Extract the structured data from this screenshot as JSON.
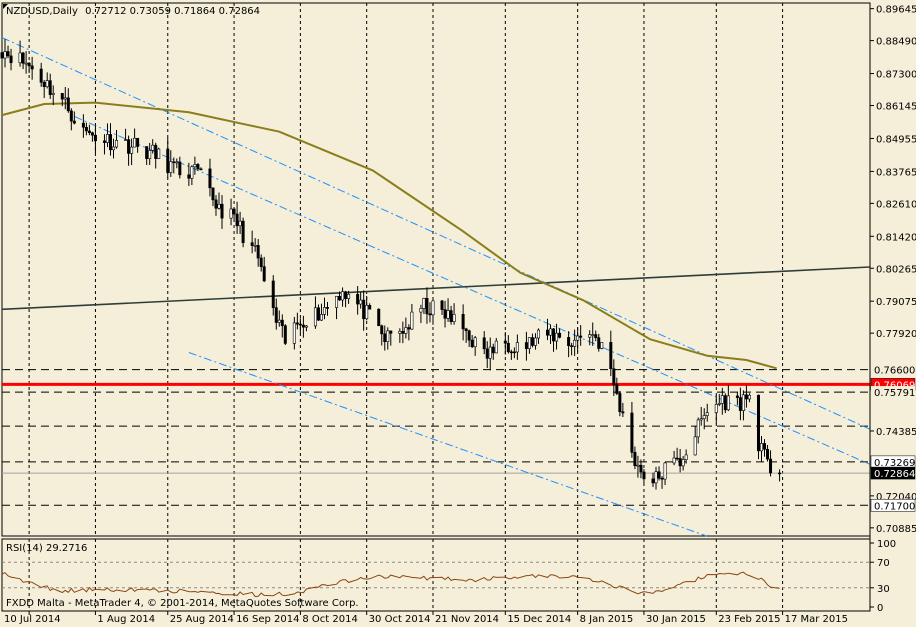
{
  "chart_data": {
    "type": "candlestick",
    "title": "NZDUSD,Daily",
    "ohlc_readout": "0.72712 0.73059 0.71864 0.72864",
    "symbol": "NZDUSD",
    "timeframe": "Daily",
    "price_axis_ticks": [
      "0.89645",
      "0.88490",
      "0.87300",
      "0.86145",
      "0.84955",
      "0.83765",
      "0.82610",
      "0.81420",
      "0.80265",
      "0.79075",
      "0.77920",
      "0.74385",
      "0.72040",
      "0.70885"
    ],
    "price_range": [
      0.7059,
      0.8985
    ],
    "price_labels": [
      {
        "text": "0.76600",
        "value": 0.766,
        "bg": "#F5EFD9",
        "fg": "#000000"
      },
      {
        "text": "0.76069",
        "value": 0.76069,
        "bg": "#FF0000",
        "fg": "#FFFFFF"
      },
      {
        "text": "0.75791",
        "value": 0.75791,
        "bg": "#F5EFD9",
        "fg": "#000000"
      },
      {
        "text": "0.73269",
        "value": 0.73269,
        "bg": "#FFFFFF",
        "fg": "#000000"
      },
      {
        "text": "0.72864",
        "value": 0.72864,
        "bg": "#000000",
        "fg": "#FFFFFF"
      },
      {
        "text": "0.71700",
        "value": 0.717,
        "bg": "#FFFFFF",
        "fg": "#000000"
      }
    ],
    "date_axis_ticks": [
      "10 Jul 2014",
      "1 Aug 2014",
      "25 Aug 2014",
      "16 Sep 2014",
      "8 Oct 2014",
      "30 Oct 2014",
      "21 Nov 2014",
      "15 Dec 2014",
      "8 Jan 2015",
      "30 Jan 2015",
      "23 Feb 2015",
      "17 Mar 2015"
    ],
    "date_range": [
      "2014-07-01",
      "2015-04-15"
    ],
    "bars_anchor": [
      [
        "2014-07-01",
        0.882
      ],
      [
        "2014-07-10",
        0.876
      ],
      [
        "2014-07-16",
        0.869
      ],
      [
        "2014-07-22",
        0.862
      ],
      [
        "2014-07-28",
        0.852
      ],
      [
        "2014-08-05",
        0.849
      ],
      [
        "2014-08-14",
        0.847
      ],
      [
        "2014-08-22",
        0.843
      ],
      [
        "2014-08-28",
        0.838
      ],
      [
        "2014-09-04",
        0.837
      ],
      [
        "2014-09-10",
        0.826
      ],
      [
        "2014-09-17",
        0.819
      ],
      [
        "2014-09-24",
        0.806
      ],
      [
        "2014-09-29",
        0.786
      ],
      [
        "2014-10-03",
        0.776
      ],
      [
        "2014-10-08",
        0.784
      ],
      [
        "2014-10-15",
        0.787
      ],
      [
        "2014-10-22",
        0.795
      ],
      [
        "2014-10-30",
        0.786
      ],
      [
        "2014-11-05",
        0.777
      ],
      [
        "2014-11-12",
        0.781
      ],
      [
        "2014-11-18",
        0.789
      ],
      [
        "2014-11-25",
        0.786
      ],
      [
        "2014-12-02",
        0.78
      ],
      [
        "2014-12-08",
        0.771
      ],
      [
        "2014-12-15",
        0.776
      ],
      [
        "2014-12-22",
        0.775
      ],
      [
        "2014-12-30",
        0.779
      ],
      [
        "2015-01-06",
        0.776
      ],
      [
        "2015-01-12",
        0.78
      ],
      [
        "2015-01-16",
        0.775
      ],
      [
        "2015-01-21",
        0.757
      ],
      [
        "2015-01-25",
        0.74
      ],
      [
        "2015-01-28",
        0.731
      ],
      [
        "2015-02-02",
        0.725
      ],
      [
        "2015-02-06",
        0.73
      ],
      [
        "2015-02-11",
        0.733
      ],
      [
        "2015-02-16",
        0.743
      ],
      [
        "2015-02-20",
        0.751
      ],
      [
        "2015-02-25",
        0.755
      ],
      [
        "2015-03-02",
        0.754
      ],
      [
        "2015-03-06",
        0.756
      ],
      [
        "2015-03-09",
        0.74
      ],
      [
        "2015-03-12",
        0.731
      ],
      [
        "2015-03-16",
        0.7286
      ]
    ],
    "moving_average": [
      [
        "2014-07-01",
        0.858
      ],
      [
        "2014-07-15",
        0.862
      ],
      [
        "2014-08-01",
        0.8625
      ],
      [
        "2014-09-01",
        0.859
      ],
      [
        "2014-10-01",
        0.852
      ],
      [
        "2014-11-01",
        0.838
      ],
      [
        "2014-12-01",
        0.816
      ],
      [
        "2014-12-20",
        0.801
      ],
      [
        "2015-01-10",
        0.791
      ],
      [
        "2015-02-01",
        0.777
      ],
      [
        "2015-02-20",
        0.771
      ],
      [
        "2015-03-05",
        0.7695
      ],
      [
        "2015-03-15",
        0.7665
      ]
    ],
    "horizontal_levels": [
      {
        "value": 0.76069,
        "style": "solid",
        "color": "#FF0000"
      },
      {
        "value": 0.766,
        "style": "dashed",
        "color": "#000000"
      },
      {
        "value": 0.75791,
        "style": "dashed",
        "color": "#000000"
      },
      {
        "value": 0.7456,
        "style": "dashed",
        "color": "#000000"
      },
      {
        "value": 0.73269,
        "style": "dashed",
        "color": "#000000"
      },
      {
        "value": 0.717,
        "style": "dashed",
        "color": "#000000"
      }
    ],
    "trendlines": [
      {
        "from": [
          "2014-07-01",
          0.7878
        ],
        "to": [
          "2015-04-15",
          0.8031
        ],
        "color": "#2F3D3A",
        "style": "solid"
      },
      {
        "from": [
          "2014-07-01",
          0.886
        ],
        "to": [
          "2015-04-15",
          0.7445
        ],
        "color": "#1E90FF",
        "style": "dashdot"
      },
      {
        "from": [
          "2014-07-25",
          0.8575
        ],
        "to": [
          "2015-04-15",
          0.7318
        ],
        "color": "#1E90FF",
        "style": "dashdot"
      },
      {
        "from": [
          "2014-09-01",
          0.7722
        ],
        "to": [
          "2015-02-20",
          0.7058
        ],
        "color": "#1E90FF",
        "style": "dashdot"
      }
    ],
    "colors": {
      "background": "#F5EFD9",
      "moving_average": "#8B7D1A",
      "support_line": "#FF0000",
      "channel_lines": "#1E90FF",
      "rsi_line": "#8B4513"
    }
  },
  "rsi": {
    "label": "RSI(14) 29.2716",
    "ticks": [
      "100",
      "70",
      "30",
      "0"
    ],
    "range": [
      0,
      100
    ],
    "levels": [
      70,
      30
    ],
    "anchor": [
      [
        "2014-07-01",
        55
      ],
      [
        "2014-07-08",
        40
      ],
      [
        "2014-07-20",
        25
      ],
      [
        "2014-08-05",
        28
      ],
      [
        "2014-08-20",
        26
      ],
      [
        "2014-09-05",
        24
      ],
      [
        "2014-09-25",
        19
      ],
      [
        "2014-10-05",
        21
      ],
      [
        "2014-10-20",
        38
      ],
      [
        "2014-11-01",
        48
      ],
      [
        "2014-11-20",
        45
      ],
      [
        "2014-12-05",
        43
      ],
      [
        "2014-12-20",
        47
      ],
      [
        "2015-01-05",
        49
      ],
      [
        "2015-01-15",
        42
      ],
      [
        "2015-01-25",
        25
      ],
      [
        "2015-02-01",
        20
      ],
      [
        "2015-02-10",
        35
      ],
      [
        "2015-02-20",
        48
      ],
      [
        "2015-03-01",
        52
      ],
      [
        "2015-03-07",
        52
      ],
      [
        "2015-03-12",
        35
      ],
      [
        "2015-03-16",
        29
      ]
    ]
  },
  "footer": {
    "copyright": "FXDD Malta - MetaTrader 4, © 2001-2014, MetaQuotes Software Corp."
  }
}
